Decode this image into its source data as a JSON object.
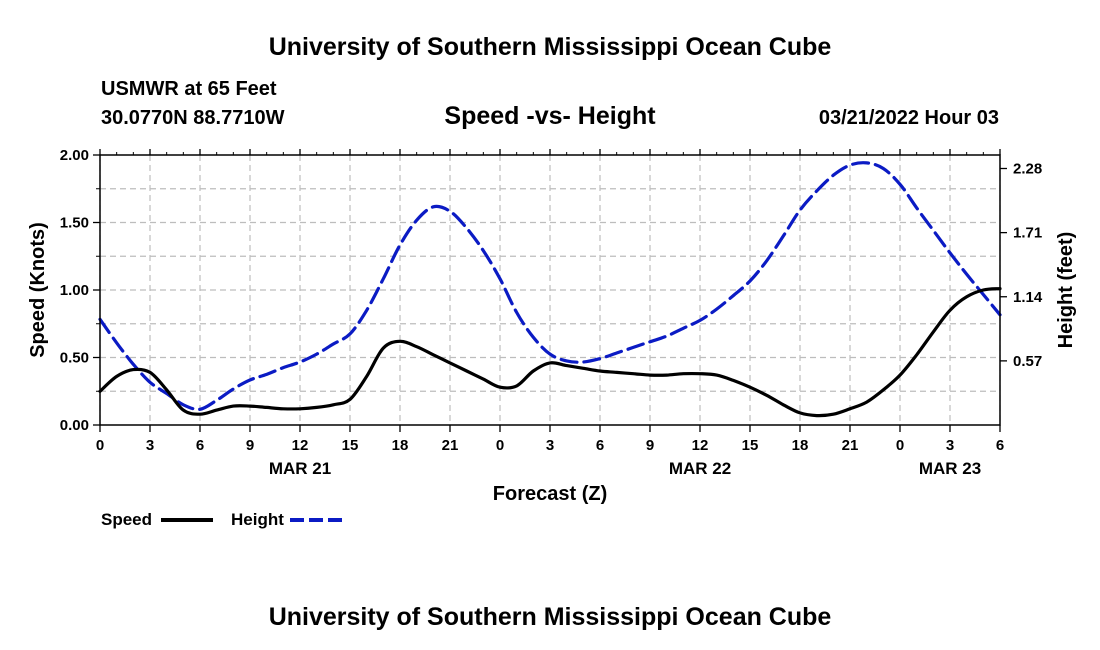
{
  "header": {
    "title": "University of Southern Mississippi Ocean Cube",
    "station": "USMWR at 65 Feet",
    "coords": "30.0770N  88.7710W",
    "subtitle": "Speed -vs- Height",
    "datetime": "03/21/2022 Hour 03"
  },
  "footer": {
    "title": "University of Southern Mississippi Ocean Cube"
  },
  "colors": {
    "speed": "#000000",
    "height": "#0b1bc4",
    "grid": "#bdbdbd"
  },
  "chart_data": {
    "type": "line",
    "xlabel": "Forecast (Z)",
    "ylabel": "Speed (Knots)",
    "y2label": "Height (feet)",
    "x_range_hours": [
      0,
      54
    ],
    "ylim": [
      0,
      2.0
    ],
    "y2lim": [
      0,
      2.4
    ],
    "grid": true,
    "x_ticks": [
      {
        "h": 0,
        "label": "0"
      },
      {
        "h": 3,
        "label": "3"
      },
      {
        "h": 6,
        "label": "6"
      },
      {
        "h": 9,
        "label": "9"
      },
      {
        "h": 12,
        "label": "12"
      },
      {
        "h": 15,
        "label": "15"
      },
      {
        "h": 18,
        "label": "18"
      },
      {
        "h": 21,
        "label": "21"
      },
      {
        "h": 24,
        "label": "0"
      },
      {
        "h": 27,
        "label": "3"
      },
      {
        "h": 30,
        "label": "6"
      },
      {
        "h": 33,
        "label": "9"
      },
      {
        "h": 36,
        "label": "12"
      },
      {
        "h": 39,
        "label": "15"
      },
      {
        "h": 42,
        "label": "18"
      },
      {
        "h": 45,
        "label": "21"
      },
      {
        "h": 48,
        "label": "0"
      },
      {
        "h": 51,
        "label": "3"
      },
      {
        "h": 54,
        "label": "6"
      }
    ],
    "date_labels": [
      {
        "h": 12,
        "label": "MAR 21"
      },
      {
        "h": 36,
        "label": "MAR 22"
      },
      {
        "h": 51,
        "label": "MAR 23"
      }
    ],
    "y_ticks": [
      {
        "v": 0.0,
        "label": "0.00"
      },
      {
        "v": 0.5,
        "label": "0.50"
      },
      {
        "v": 1.0,
        "label": "1.00"
      },
      {
        "v": 1.5,
        "label": "1.50"
      },
      {
        "v": 2.0,
        "label": "2.00"
      }
    ],
    "y2_ticks": [
      {
        "v": 0.57,
        "label": "0.57"
      },
      {
        "v": 1.14,
        "label": "1.14"
      },
      {
        "v": 1.71,
        "label": "1.71"
      },
      {
        "v": 2.28,
        "label": "2.28"
      }
    ],
    "series": [
      {
        "name": "Speed",
        "axis": "left",
        "dash": "solid",
        "points": [
          [
            0,
            0.25
          ],
          [
            1,
            0.36
          ],
          [
            2,
            0.41
          ],
          [
            3,
            0.39
          ],
          [
            4,
            0.26
          ],
          [
            5,
            0.11
          ],
          [
            6,
            0.08
          ],
          [
            7,
            0.11
          ],
          [
            8,
            0.14
          ],
          [
            9,
            0.14
          ],
          [
            10,
            0.13
          ],
          [
            11,
            0.12
          ],
          [
            12,
            0.12
          ],
          [
            13,
            0.13
          ],
          [
            14,
            0.15
          ],
          [
            15,
            0.19
          ],
          [
            16,
            0.36
          ],
          [
            17,
            0.57
          ],
          [
            18,
            0.62
          ],
          [
            19,
            0.58
          ],
          [
            20,
            0.52
          ],
          [
            21,
            0.46
          ],
          [
            22,
            0.4
          ],
          [
            23,
            0.34
          ],
          [
            24,
            0.28
          ],
          [
            25,
            0.29
          ],
          [
            26,
            0.4
          ],
          [
            27,
            0.46
          ],
          [
            28,
            0.44
          ],
          [
            29,
            0.42
          ],
          [
            30,
            0.4
          ],
          [
            31,
            0.39
          ],
          [
            32,
            0.38
          ],
          [
            33,
            0.37
          ],
          [
            34,
            0.37
          ],
          [
            35,
            0.38
          ],
          [
            36,
            0.38
          ],
          [
            37,
            0.37
          ],
          [
            38,
            0.33
          ],
          [
            39,
            0.28
          ],
          [
            40,
            0.22
          ],
          [
            41,
            0.15
          ],
          [
            42,
            0.09
          ],
          [
            43,
            0.07
          ],
          [
            44,
            0.08
          ],
          [
            45,
            0.12
          ],
          [
            46,
            0.17
          ],
          [
            47,
            0.26
          ],
          [
            48,
            0.37
          ],
          [
            49,
            0.52
          ],
          [
            50,
            0.69
          ],
          [
            51,
            0.85
          ],
          [
            52,
            0.95
          ],
          [
            53,
            1.0
          ],
          [
            54,
            1.01
          ]
        ]
      },
      {
        "name": "Height",
        "axis": "right",
        "dash": "dashed",
        "points": [
          [
            0,
            0.94
          ],
          [
            1,
            0.73
          ],
          [
            2,
            0.54
          ],
          [
            3,
            0.38
          ],
          [
            4,
            0.28
          ],
          [
            5,
            0.18
          ],
          [
            6,
            0.14
          ],
          [
            7,
            0.22
          ],
          [
            8,
            0.32
          ],
          [
            9,
            0.4
          ],
          [
            10,
            0.45
          ],
          [
            11,
            0.51
          ],
          [
            12,
            0.56
          ],
          [
            13,
            0.63
          ],
          [
            14,
            0.72
          ],
          [
            15,
            0.81
          ],
          [
            16,
            1.02
          ],
          [
            17,
            1.3
          ],
          [
            18,
            1.6
          ],
          [
            19,
            1.82
          ],
          [
            20,
            1.94
          ],
          [
            21,
            1.9
          ],
          [
            22,
            1.75
          ],
          [
            23,
            1.55
          ],
          [
            24,
            1.3
          ],
          [
            25,
            1.0
          ],
          [
            26,
            0.78
          ],
          [
            27,
            0.63
          ],
          [
            28,
            0.57
          ],
          [
            29,
            0.56
          ],
          [
            30,
            0.59
          ],
          [
            31,
            0.64
          ],
          [
            32,
            0.69
          ],
          [
            33,
            0.74
          ],
          [
            34,
            0.79
          ],
          [
            35,
            0.86
          ],
          [
            36,
            0.93
          ],
          [
            37,
            1.03
          ],
          [
            38,
            1.15
          ],
          [
            39,
            1.28
          ],
          [
            40,
            1.46
          ],
          [
            41,
            1.68
          ],
          [
            42,
            1.91
          ],
          [
            43,
            2.08
          ],
          [
            44,
            2.22
          ],
          [
            45,
            2.31
          ],
          [
            46,
            2.33
          ],
          [
            47,
            2.28
          ],
          [
            48,
            2.14
          ],
          [
            49,
            1.93
          ],
          [
            50,
            1.73
          ],
          [
            51,
            1.53
          ],
          [
            52,
            1.34
          ],
          [
            53,
            1.16
          ],
          [
            54,
            0.98
          ]
        ]
      }
    ],
    "legend": [
      {
        "name": "Speed",
        "series": 0
      },
      {
        "name": "Height",
        "series": 1
      }
    ],
    "legend_position": "bottom-left"
  }
}
